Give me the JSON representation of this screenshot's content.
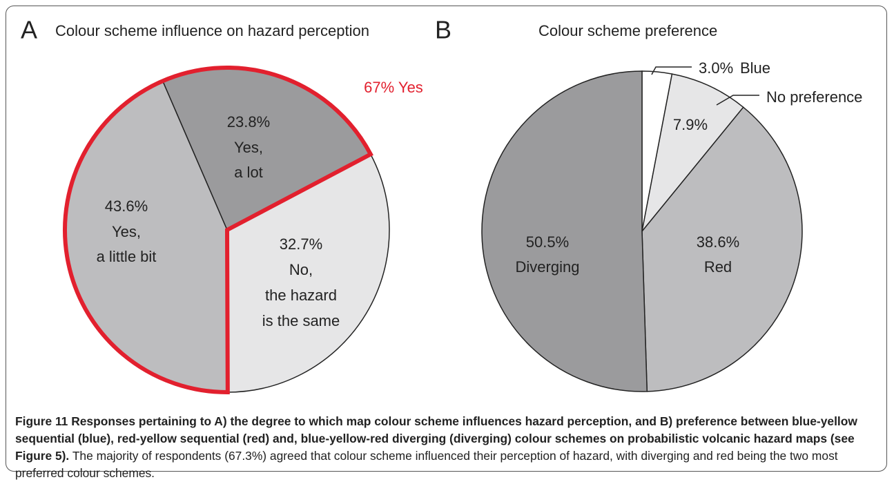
{
  "chart_data": [
    {
      "type": "pie",
      "panel": "A",
      "title": "Colour scheme influence on hazard perception",
      "categories": [
        [
          "Yes,",
          "a lot"
        ],
        [
          "No,",
          "the hazard",
          "is the same"
        ],
        [
          "Yes,",
          "a little bit"
        ]
      ],
      "values": [
        23.8,
        32.7,
        43.6
      ],
      "value_labels": [
        "23.8%",
        "32.7%",
        "43.6%"
      ],
      "colors": [
        "#9b9b9d",
        "#e6e6e7",
        "#bdbdbf"
      ],
      "annotation": "67% Yes",
      "annotation_color": "#e2202e"
    },
    {
      "type": "pie",
      "panel": "B",
      "title": "Colour scheme preference",
      "categories": [
        [
          "Blue"
        ],
        [
          "No preference"
        ],
        [
          "Red"
        ],
        [
          "Diverging"
        ]
      ],
      "values": [
        3.0,
        7.9,
        38.6,
        50.5
      ],
      "value_labels": [
        "3.0%",
        "7.9%",
        "38.6%",
        "50.5%"
      ],
      "colors": [
        "#ffffff",
        "#e6e6e7",
        "#bdbdbf",
        "#9b9b9d"
      ]
    }
  ],
  "caption": {
    "label": "Figure 11",
    "title": "Responses pertaining to A) the degree to which map colour scheme influences hazard perception, and B) preference between blue-yellow sequential (blue), red-yellow sequential (red) and, blue-yellow-red diverging (diverging) colour schemes on probabilistic volcanic hazard maps (see Figure 5).",
    "text": "The majority of respondents (67.3%) agreed that colour scheme influenced their perception of hazard, with diverging and red being the two most preferred colour schemes."
  }
}
